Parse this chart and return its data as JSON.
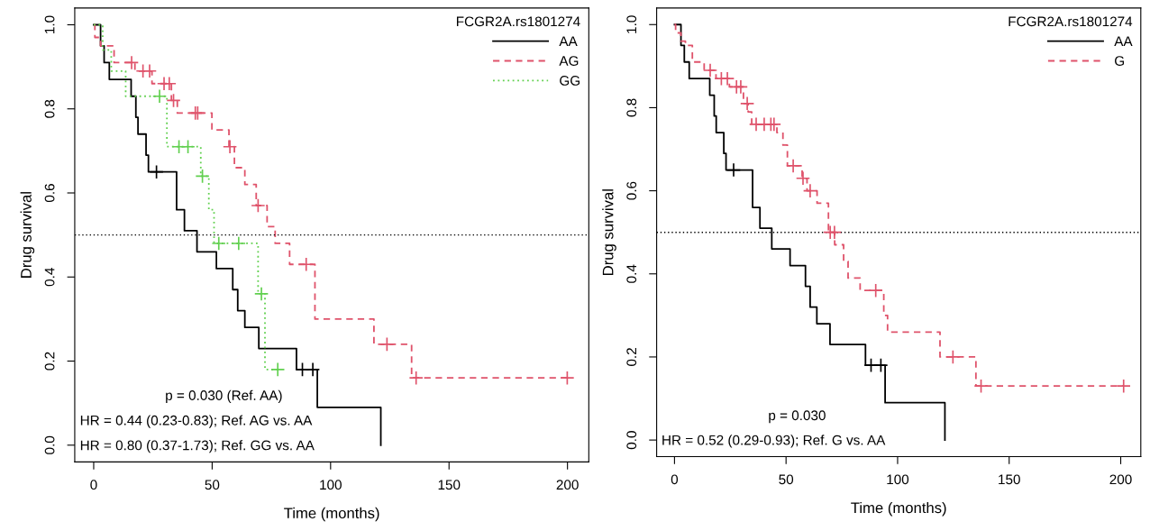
{
  "chart_data": [
    {
      "type": "step",
      "xlabel": "Time (months)",
      "ylabel": "Drug survival",
      "legend_title": "FCGR2A.rs1801274",
      "legend": "top right",
      "xlim": [
        -8,
        209
      ],
      "xticks": [
        0,
        50,
        100,
        150,
        200
      ],
      "ylim": [
        -0.04,
        1.04
      ],
      "yticks": [
        {
          "value": 0,
          "label": "0.0"
        },
        {
          "value": 0.2,
          "label": "0.2"
        },
        {
          "value": 0.4,
          "label": "0.4"
        },
        {
          "value": 0.6,
          "label": "0.6"
        },
        {
          "value": 0.8,
          "label": "0.8"
        },
        {
          "value": 1,
          "label": "1.0"
        }
      ],
      "grid": false,
      "ref_lines": [
        {
          "axis": "y",
          "value": 0.5,
          "color": "#000000",
          "line_style": "dotted"
        }
      ],
      "annotations": [
        "p = 0.030 (Ref. AA)",
        "HR = 0.44 (0.23-0.83); Ref. AG vs. AA",
        "HR = 0.80 (0.37-1.73); Ref. GG vs. AA"
      ],
      "series": [
        {
          "type": "step",
          "name": "AA",
          "color": "#000000",
          "line_style": "solid",
          "x": [
            0,
            2.9,
            4.4,
            6.6,
            15.8,
            17.8,
            18.7,
            22.1,
            23.1,
            35.0,
            38.3,
            43.6,
            51.8,
            58.7,
            60.8,
            63.8,
            69.7,
            85.6,
            94.4,
            121.2
          ],
          "values": [
            1,
            0.95,
            0.91,
            0.87,
            0.83,
            0.78,
            0.74,
            0.69,
            0.65,
            0.56,
            0.51,
            0.46,
            0.42,
            0.37,
            0.32,
            0.28,
            0.23,
            0.18,
            0.09,
            0
          ]
        },
        {
          "type": "step",
          "name": "AG",
          "color": "#df536b",
          "line_style": "dashed",
          "x": [
            0,
            0.5,
            2.9,
            8.6,
            17.4,
            24.6,
            32.8,
            35.3,
            49.9,
            57.1,
            59.4,
            63.8,
            68.6,
            73.2,
            76.6,
            82.7,
            93.4,
            118.3,
            134.2,
            199.9
          ],
          "values": [
            1,
            0.97,
            0.95,
            0.91,
            0.89,
            0.86,
            0.82,
            0.79,
            0.75,
            0.71,
            0.66,
            0.62,
            0.57,
            0.52,
            0.48,
            0.43,
            0.3,
            0.24,
            0.16,
            0.16
          ]
        },
        {
          "type": "step",
          "name": "GG",
          "color": "#61d04f",
          "line_style": "dotted",
          "x": [
            0,
            3.8,
            7.4,
            13.5,
            30.9,
            45.2,
            48.6,
            50.8,
            69.4,
            72.3,
            77.7
          ],
          "values": [
            1,
            0.94,
            0.89,
            0.83,
            0.71,
            0.64,
            0.56,
            0.48,
            0.36,
            0.18,
            0.18
          ]
        },
        {
          "type": "scatter",
          "marker": "cross",
          "color": "#000000",
          "x": [
            26.5,
            88.1,
            92.5
          ],
          "values": [
            0.65,
            0.18,
            0.18
          ]
        },
        {
          "type": "scatter",
          "marker": "cross",
          "color": "#df536b",
          "x": [
            16,
            20.8,
            23.6,
            29.7,
            31.9,
            33.7,
            42.9,
            43.9,
            57.5,
            69.4,
            89.7,
            123.8,
            136.1,
            199.9
          ],
          "values": [
            0.91,
            0.89,
            0.89,
            0.86,
            0.86,
            0.82,
            0.79,
            0.79,
            0.71,
            0.57,
            0.43,
            0.24,
            0.16,
            0.16
          ]
        },
        {
          "type": "scatter",
          "marker": "cross",
          "color": "#61d04f",
          "x": [
            27.8,
            36,
            39.8,
            45.9,
            52.8,
            61.2,
            70.8,
            77.7
          ],
          "values": [
            0.83,
            0.71,
            0.71,
            0.64,
            0.48,
            0.48,
            0.36,
            0.18
          ]
        }
      ]
    },
    {
      "type": "step",
      "xlabel": "Time (months)",
      "ylabel": "Drug survival",
      "legend_title": "FCGR2A.rs1801274",
      "legend": "top right",
      "xlim": [
        -8,
        209
      ],
      "xticks": [
        0,
        50,
        100,
        150,
        200
      ],
      "ylim": [
        -0.04,
        1.04
      ],
      "yticks": [
        {
          "value": 0,
          "label": "0.0"
        },
        {
          "value": 0.2,
          "label": "0.2"
        },
        {
          "value": 0.4,
          "label": "0.4"
        },
        {
          "value": 0.6,
          "label": "0.6"
        },
        {
          "value": 0.8,
          "label": "0.8"
        },
        {
          "value": 1,
          "label": "1.0"
        }
      ],
      "grid": false,
      "ref_lines": [
        {
          "axis": "y",
          "value": 0.5,
          "color": "#000000",
          "line_style": "dotted"
        }
      ],
      "annotations": [
        "p = 0.030",
        "HR = 0.52 (0.29-0.93); Ref. G vs. AA"
      ],
      "series": [
        {
          "type": "step",
          "name": "AA",
          "color": "#000000",
          "line_style": "solid",
          "x": [
            0,
            2.9,
            4.4,
            6.6,
            15.8,
            17.8,
            18.7,
            22.1,
            23.1,
            35.0,
            38.3,
            43.6,
            51.8,
            58.7,
            60.8,
            63.8,
            69.7,
            85.6,
            94.4,
            121.2
          ],
          "values": [
            1,
            0.95,
            0.91,
            0.87,
            0.83,
            0.78,
            0.74,
            0.69,
            0.65,
            0.56,
            0.51,
            0.46,
            0.42,
            0.37,
            0.32,
            0.28,
            0.23,
            0.18,
            0.09,
            0
          ]
        },
        {
          "type": "step",
          "name": "G",
          "color": "#df536b",
          "line_style": "dashed",
          "x": [
            0,
            0.5,
            2.9,
            4.9,
            8,
            13.3,
            18.6,
            24.6,
            30.9,
            33,
            34.6,
            45.9,
            48.6,
            50.6,
            57.2,
            59.4,
            63.9,
            69,
            71.8,
            75.8,
            77.8,
            83.2,
            93.8,
            95.5,
            119,
            135.1,
            201.3
          ],
          "values": [
            1,
            0.98,
            0.96,
            0.95,
            0.91,
            0.89,
            0.87,
            0.85,
            0.81,
            0.79,
            0.76,
            0.74,
            0.71,
            0.66,
            0.63,
            0.6,
            0.57,
            0.5,
            0.47,
            0.43,
            0.39,
            0.36,
            0.3,
            0.26,
            0.2,
            0.13,
            0.13
          ]
        },
        {
          "type": "scatter",
          "marker": "cross",
          "color": "#000000",
          "x": [
            26.5,
            88.1,
            92.5
          ],
          "values": [
            0.65,
            0.18,
            0.18
          ]
        },
        {
          "type": "scatter",
          "marker": "cross",
          "color": "#df536b",
          "x": [
            16,
            21,
            23.7,
            27.8,
            29.7,
            32.6,
            36.6,
            40.2,
            43.2,
            44.6,
            53.2,
            57.6,
            60.8,
            69.8,
            71.7,
            90.2,
            124.8,
            137.4,
            201.3
          ],
          "values": [
            0.89,
            0.87,
            0.87,
            0.85,
            0.85,
            0.81,
            0.76,
            0.76,
            0.76,
            0.76,
            0.66,
            0.63,
            0.6,
            0.5,
            0.5,
            0.36,
            0.2,
            0.13,
            0.13
          ]
        }
      ]
    }
  ]
}
